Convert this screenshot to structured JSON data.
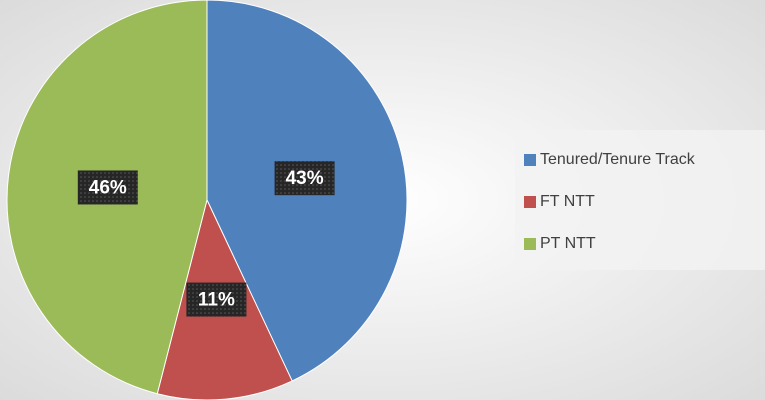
{
  "chart_data": {
    "type": "pie",
    "categories": [
      "Tenured/Tenure Track",
      "FT NTT",
      "PT NTT"
    ],
    "values": [
      43,
      11,
      46
    ],
    "value_labels": [
      "43%",
      "11%",
      "46%"
    ],
    "colors": [
      "#4f81bd",
      "#c0504d",
      "#9bbb59"
    ]
  }
}
